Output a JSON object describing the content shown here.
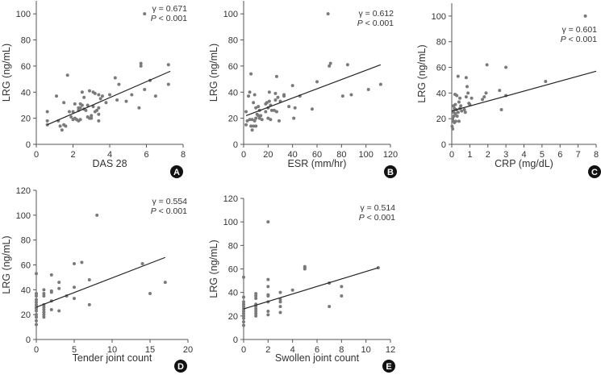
{
  "chart_data": [
    {
      "type": "scatter",
      "panel": "A",
      "xlabel": "DAS 28",
      "ylabel": "LRG (ng/mL)",
      "xlim": [
        0,
        8
      ],
      "ylim": [
        0,
        110
      ],
      "xticks": [
        0,
        2,
        4,
        6,
        8
      ],
      "yticks": [
        0,
        20,
        40,
        60,
        80,
        100
      ],
      "stat_r": "γ = 0.671",
      "stat_p_italic": "P",
      "stat_p_rest": " < 0.001",
      "fit": [
        [
          0.6,
          15
        ],
        [
          7.3,
          56
        ]
      ],
      "points": [
        [
          0.6,
          25
        ],
        [
          0.6,
          18
        ],
        [
          0.6,
          15
        ],
        [
          1.1,
          37
        ],
        [
          1.2,
          18
        ],
        [
          1.3,
          14
        ],
        [
          1.4,
          11
        ],
        [
          1.5,
          32
        ],
        [
          1.5,
          15
        ],
        [
          1.6,
          14
        ],
        [
          1.7,
          53
        ],
        [
          1.8,
          25
        ],
        [
          1.9,
          21
        ],
        [
          2.0,
          19
        ],
        [
          2.0,
          25
        ],
        [
          2.1,
          20
        ],
        [
          2.1,
          31
        ],
        [
          2.2,
          19
        ],
        [
          2.3,
          28
        ],
        [
          2.3,
          26
        ],
        [
          2.3,
          18
        ],
        [
          2.4,
          31
        ],
        [
          2.4,
          19
        ],
        [
          2.4,
          28
        ],
        [
          2.5,
          40
        ],
        [
          2.5,
          30
        ],
        [
          2.6,
          36
        ],
        [
          2.6,
          27
        ],
        [
          2.7,
          26
        ],
        [
          2.8,
          21
        ],
        [
          2.8,
          30
        ],
        [
          2.9,
          20
        ],
        [
          2.9,
          41
        ],
        [
          3.0,
          22
        ],
        [
          3.0,
          20
        ],
        [
          3.1,
          29
        ],
        [
          3.1,
          40
        ],
        [
          3.2,
          39
        ],
        [
          3.2,
          25
        ],
        [
          3.3,
          26
        ],
        [
          3.4,
          38
        ],
        [
          3.4,
          18
        ],
        [
          3.4,
          28
        ],
        [
          3.4,
          23
        ],
        [
          3.5,
          35
        ],
        [
          3.6,
          37
        ],
        [
          3.8,
          32
        ],
        [
          4.0,
          38
        ],
        [
          4.3,
          51
        ],
        [
          4.4,
          34
        ],
        [
          4.5,
          46
        ],
        [
          4.9,
          33
        ],
        [
          5.2,
          38
        ],
        [
          5.6,
          28
        ],
        [
          5.7,
          62
        ],
        [
          5.7,
          60
        ],
        [
          5.9,
          42
        ],
        [
          5.9,
          100
        ],
        [
          6.2,
          49
        ],
        [
          6.5,
          37
        ],
        [
          7.2,
          61
        ],
        [
          7.2,
          46
        ]
      ]
    },
    {
      "type": "scatter",
      "panel": "B",
      "xlabel": "ESR (mm/hr)",
      "ylabel": "LRG (ng/mL)",
      "xlim": [
        0,
        120
      ],
      "ylim": [
        0,
        110
      ],
      "xticks": [
        0,
        20,
        40,
        60,
        80,
        100,
        120
      ],
      "yticks": [
        0,
        20,
        40,
        60,
        80,
        100
      ],
      "stat_r": "γ = 0.612",
      "stat_p_italic": "P",
      "stat_p_rest": " < 0.001",
      "fit": [
        [
          2,
          22
        ],
        [
          112,
          61
        ]
      ],
      "points": [
        [
          2,
          25
        ],
        [
          2,
          15
        ],
        [
          3,
          18
        ],
        [
          4,
          37
        ],
        [
          5,
          40
        ],
        [
          5,
          19
        ],
        [
          6,
          54
        ],
        [
          6,
          14
        ],
        [
          7,
          11
        ],
        [
          7,
          19
        ],
        [
          8,
          14
        ],
        [
          8,
          32
        ],
        [
          9,
          38
        ],
        [
          9,
          18
        ],
        [
          10,
          14
        ],
        [
          10,
          20
        ],
        [
          10,
          28
        ],
        [
          11,
          23
        ],
        [
          12,
          22
        ],
        [
          12,
          29
        ],
        [
          13,
          20
        ],
        [
          13,
          26
        ],
        [
          14,
          22
        ],
        [
          15,
          19
        ],
        [
          18,
          25
        ],
        [
          18,
          31
        ],
        [
          19,
          32
        ],
        [
          20,
          20
        ],
        [
          20,
          28
        ],
        [
          21,
          40
        ],
        [
          21,
          33
        ],
        [
          22,
          19
        ],
        [
          22,
          30
        ],
        [
          23,
          26
        ],
        [
          25,
          26
        ],
        [
          26,
          39
        ],
        [
          26,
          34
        ],
        [
          27,
          52
        ],
        [
          27,
          25
        ],
        [
          28,
          36
        ],
        [
          29,
          18
        ],
        [
          30,
          33
        ],
        [
          33,
          37
        ],
        [
          33,
          38
        ],
        [
          37,
          29
        ],
        [
          40,
          45
        ],
        [
          41,
          20
        ],
        [
          42,
          28
        ],
        [
          46,
          37
        ],
        [
          56,
          27
        ],
        [
          60,
          48
        ],
        [
          69,
          100
        ],
        [
          70,
          60
        ],
        [
          71,
          62
        ],
        [
          81,
          37
        ],
        [
          85,
          61
        ],
        [
          88,
          38
        ],
        [
          102,
          42
        ],
        [
          112,
          46
        ]
      ]
    },
    {
      "type": "scatter",
      "panel": "C",
      "xlabel": "CRP (mg/dL)",
      "ylabel": "LRG (ng/mL)",
      "xlim": [
        0,
        8
      ],
      "ylim": [
        0,
        110
      ],
      "xticks": [
        0,
        1,
        2,
        3,
        4,
        5,
        6,
        7,
        8
      ],
      "yticks": [
        0,
        20,
        40,
        60,
        80,
        100
      ],
      "stat_r": "γ = 0.601",
      "stat_p_italic": "P",
      "stat_p_rest": " < 0.001",
      "fit": [
        [
          0,
          26
        ],
        [
          8,
          57
        ]
      ],
      "points": [
        [
          0.02,
          14
        ],
        [
          0.05,
          20
        ],
        [
          0.05,
          12
        ],
        [
          0.08,
          18
        ],
        [
          0.1,
          25
        ],
        [
          0.1,
          30
        ],
        [
          0.12,
          22
        ],
        [
          0.15,
          17
        ],
        [
          0.15,
          28
        ],
        [
          0.18,
          39
        ],
        [
          0.2,
          24
        ],
        [
          0.2,
          31
        ],
        [
          0.22,
          18
        ],
        [
          0.25,
          27
        ],
        [
          0.28,
          38
        ],
        [
          0.3,
          22
        ],
        [
          0.35,
          53
        ],
        [
          0.35,
          25
        ],
        [
          0.4,
          18
        ],
        [
          0.4,
          33
        ],
        [
          0.45,
          36
        ],
        [
          0.45,
          28
        ],
        [
          0.5,
          30
        ],
        [
          0.55,
          26
        ],
        [
          0.7,
          27
        ],
        [
          0.75,
          25
        ],
        [
          0.8,
          52
        ],
        [
          0.8,
          37
        ],
        [
          0.85,
          45
        ],
        [
          0.9,
          40
        ],
        [
          0.95,
          32
        ],
        [
          1.0,
          31
        ],
        [
          1.1,
          36
        ],
        [
          1.7,
          35
        ],
        [
          1.8,
          37
        ],
        [
          1.9,
          40
        ],
        [
          1.95,
          62
        ],
        [
          2.65,
          42
        ],
        [
          2.75,
          27
        ],
        [
          3.0,
          60
        ],
        [
          3.0,
          38
        ],
        [
          5.2,
          49
        ],
        [
          7.4,
          100
        ]
      ]
    },
    {
      "type": "scatter",
      "panel": "D",
      "xlabel": "Tender joint count",
      "ylabel": "LRG (ng/mL)",
      "xlim": [
        0,
        20
      ],
      "ylim": [
        0,
        120
      ],
      "xticks": [
        0,
        5,
        10,
        15,
        20
      ],
      "yticks": [
        0,
        20,
        40,
        60,
        80,
        100,
        120
      ],
      "stat_r": "γ = 0.554",
      "stat_p_italic": "P",
      "stat_p_rest": " < 0.001",
      "fit": [
        [
          0,
          26
        ],
        [
          17,
          66
        ]
      ],
      "points": [
        [
          0,
          53
        ],
        [
          0,
          37
        ],
        [
          0,
          35
        ],
        [
          0,
          32
        ],
        [
          0,
          30
        ],
        [
          0,
          28
        ],
        [
          0,
          26
        ],
        [
          0,
          25
        ],
        [
          0,
          23
        ],
        [
          0,
          20
        ],
        [
          0,
          18
        ],
        [
          0,
          15
        ],
        [
          0,
          12
        ],
        [
          1,
          40
        ],
        [
          1,
          37
        ],
        [
          1,
          35
        ],
        [
          1,
          28
        ],
        [
          1,
          26
        ],
        [
          1,
          24
        ],
        [
          1,
          22
        ],
        [
          1,
          20
        ],
        [
          1,
          18
        ],
        [
          2,
          52
        ],
        [
          2,
          39
        ],
        [
          2,
          38
        ],
        [
          2,
          24
        ],
        [
          2,
          31
        ],
        [
          3,
          46
        ],
        [
          3,
          41
        ],
        [
          3,
          23
        ],
        [
          4,
          35
        ],
        [
          5,
          61
        ],
        [
          5,
          42
        ],
        [
          5,
          33
        ],
        [
          6,
          62
        ],
        [
          7,
          48
        ],
        [
          7,
          28
        ],
        [
          8,
          100
        ],
        [
          14,
          61
        ],
        [
          15,
          37
        ],
        [
          17,
          46
        ]
      ]
    },
    {
      "type": "scatter",
      "panel": "E",
      "xlabel": "Swollen joint count",
      "ylabel": "LRG (ng/mL)",
      "xlim": [
        0,
        12
      ],
      "ylim": [
        0,
        120
      ],
      "xticks": [
        0,
        2,
        4,
        6,
        8,
        10,
        12
      ],
      "yticks": [
        0,
        20,
        40,
        60,
        80,
        100,
        120
      ],
      "stat_r": "γ = 0.514",
      "stat_p_italic": "P",
      "stat_p_rest": " < 0.001",
      "fit": [
        [
          0,
          26
        ],
        [
          11,
          61
        ]
      ],
      "points": [
        [
          0,
          53
        ],
        [
          0,
          36
        ],
        [
          0,
          32
        ],
        [
          0,
          30
        ],
        [
          0,
          28
        ],
        [
          0,
          26
        ],
        [
          0,
          24
        ],
        [
          0,
          22
        ],
        [
          0,
          20
        ],
        [
          0,
          18
        ],
        [
          0,
          15
        ],
        [
          0,
          12
        ],
        [
          1,
          39
        ],
        [
          1,
          37
        ],
        [
          1,
          35
        ],
        [
          1,
          30
        ],
        [
          1,
          28
        ],
        [
          1,
          26
        ],
        [
          1,
          24
        ],
        [
          1,
          22
        ],
        [
          1,
          20
        ],
        [
          2,
          100
        ],
        [
          2,
          51
        ],
        [
          2,
          45
        ],
        [
          2,
          38
        ],
        [
          2,
          37
        ],
        [
          2,
          32
        ],
        [
          2,
          24
        ],
        [
          2,
          21
        ],
        [
          3,
          40
        ],
        [
          3,
          34
        ],
        [
          3,
          32
        ],
        [
          3,
          28
        ],
        [
          3,
          23
        ],
        [
          4,
          42
        ],
        [
          5,
          62
        ],
        [
          5,
          61
        ],
        [
          5,
          60
        ],
        [
          7,
          48
        ],
        [
          7,
          28
        ],
        [
          8,
          45
        ],
        [
          8,
          37
        ],
        [
          11,
          61
        ]
      ]
    }
  ],
  "colors": {
    "dot": "#7a7a7a",
    "line": "#222222",
    "axis": "#555555",
    "badge": "#111111"
  }
}
